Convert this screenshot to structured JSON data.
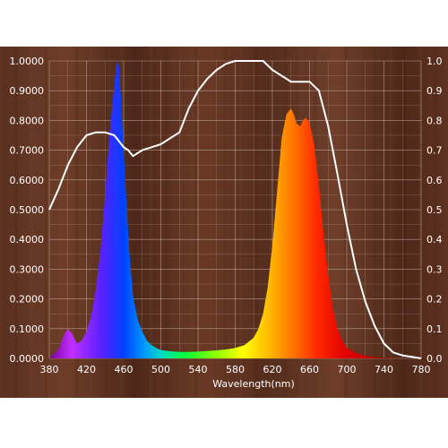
{
  "chart_data": {
    "type": "area",
    "xlabel": "Wavelength(nm)",
    "xlim": [
      380,
      780
    ],
    "ylim": [
      0,
      1
    ],
    "x_ticks": [
      "380",
      "420",
      "460",
      "500",
      "540",
      "580",
      "620",
      "660",
      "700",
      "740",
      "780"
    ],
    "y_ticks_left": [
      "0.0000",
      "0.1000",
      "0.2000",
      "0.3000",
      "0.4000",
      "0.5000",
      "0.6000",
      "0.7000",
      "0.8000",
      "0.9000",
      "1.0000"
    ],
    "y_ticks_right": [
      "0.0",
      "0.1",
      "0.2",
      "0.3",
      "0.4",
      "0.5",
      "0.6",
      "0.7",
      "0.8",
      "0.9",
      "1.0"
    ],
    "grid": true,
    "background": "wood",
    "series": [
      {
        "kind": "filled-spectrum",
        "color": "rainbow",
        "x": [
          380,
          390,
          396,
          400,
          405,
          410,
          415,
          420,
          425,
          430,
          435,
          440,
          445,
          448,
          451,
          453,
          455,
          457,
          460,
          463,
          466,
          470,
          475,
          480,
          485,
          490,
          495,
          500,
          510,
          520,
          530,
          540,
          550,
          560,
          570,
          580,
          590,
          600,
          605,
          610,
          615,
          620,
          625,
          630,
          635,
          640,
          643,
          646,
          650,
          653,
          656,
          660,
          665,
          670,
          675,
          680,
          685,
          690,
          695,
          700,
          710,
          720,
          730,
          740,
          750,
          760,
          770,
          780
        ],
        "y": [
          0.0,
          0.03,
          0.08,
          0.1,
          0.08,
          0.05,
          0.06,
          0.09,
          0.14,
          0.23,
          0.36,
          0.55,
          0.76,
          0.86,
          0.95,
          1.0,
          0.98,
          0.88,
          0.7,
          0.52,
          0.36,
          0.21,
          0.13,
          0.09,
          0.06,
          0.045,
          0.035,
          0.028,
          0.024,
          0.022,
          0.022,
          0.023,
          0.025,
          0.027,
          0.03,
          0.035,
          0.045,
          0.07,
          0.1,
          0.15,
          0.24,
          0.38,
          0.56,
          0.74,
          0.82,
          0.84,
          0.82,
          0.79,
          0.78,
          0.8,
          0.81,
          0.79,
          0.72,
          0.58,
          0.42,
          0.28,
          0.17,
          0.1,
          0.06,
          0.035,
          0.018,
          0.008,
          0.004,
          0.002,
          0.001,
          0.0,
          0.0,
          0.0
        ]
      },
      {
        "kind": "line",
        "color": "#ffffff",
        "x": [
          380,
          390,
          400,
          410,
          420,
          430,
          440,
          450,
          455,
          460,
          465,
          470,
          475,
          480,
          490,
          500,
          510,
          520,
          530,
          540,
          550,
          560,
          570,
          580,
          590,
          600,
          610,
          620,
          630,
          640,
          650,
          660,
          670,
          680,
          690,
          700,
          710,
          720,
          730,
          740,
          750,
          760,
          770,
          780
        ],
        "y": [
          0.5,
          0.57,
          0.65,
          0.71,
          0.75,
          0.76,
          0.76,
          0.75,
          0.73,
          0.71,
          0.7,
          0.68,
          0.69,
          0.7,
          0.71,
          0.72,
          0.74,
          0.76,
          0.84,
          0.9,
          0.94,
          0.97,
          0.99,
          1.0,
          1.0,
          1.0,
          1.0,
          0.97,
          0.95,
          0.93,
          0.93,
          0.93,
          0.9,
          0.78,
          0.62,
          0.45,
          0.3,
          0.19,
          0.11,
          0.05,
          0.02,
          0.01,
          0.005,
          0.0
        ]
      }
    ]
  }
}
